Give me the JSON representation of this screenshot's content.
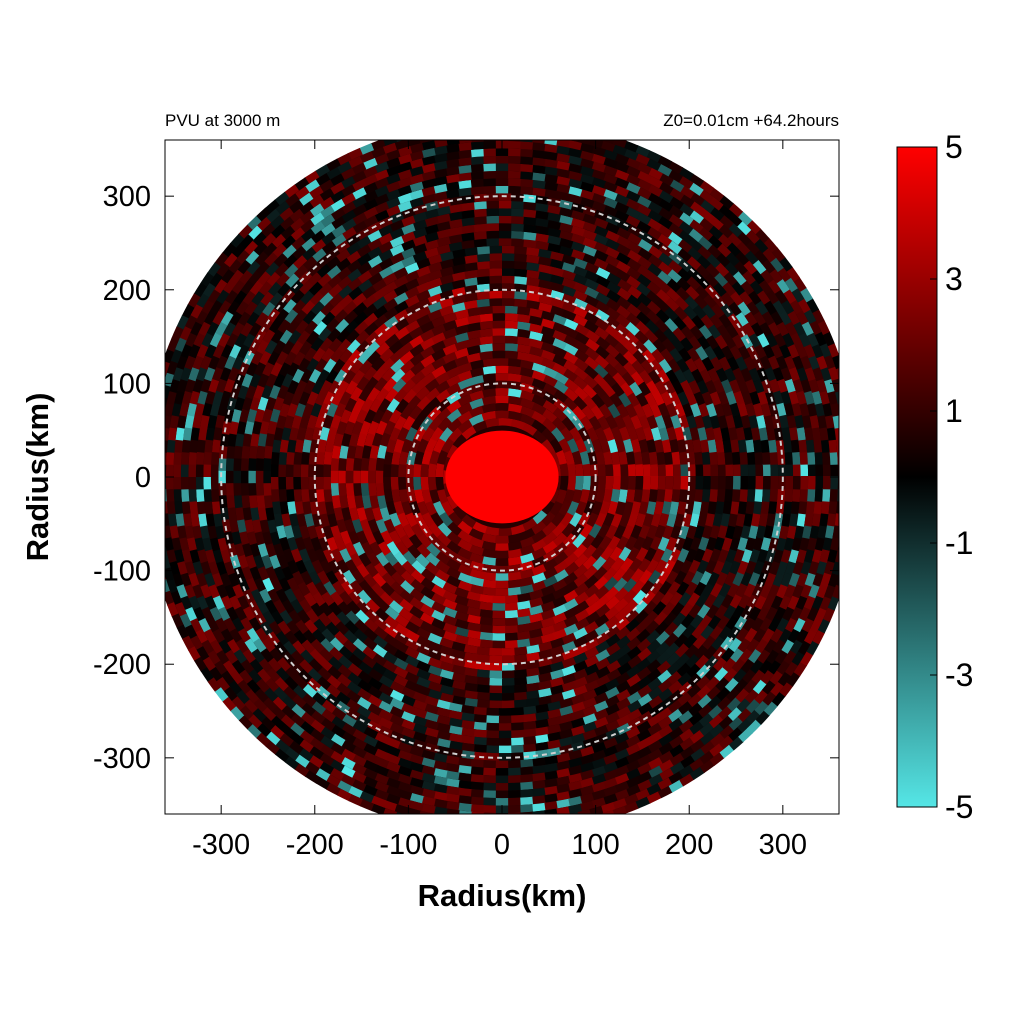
{
  "chart_data": {
    "type": "heatmap",
    "title_left": "PVU at  3000 m",
    "title_right": "Z0=0.01cm  +64.2hours",
    "xlabel": "Radius(km)",
    "ylabel": "Radius(km)",
    "xlim": [
      -360,
      360
    ],
    "ylim": [
      -360,
      360
    ],
    "x_ticks": [
      -300,
      -200,
      -100,
      0,
      100,
      200,
      300
    ],
    "y_ticks": [
      -300,
      -200,
      -100,
      0,
      100,
      200,
      300
    ],
    "x_tick_labels": [
      "-300",
      "-200",
      "-100",
      "0",
      "100",
      "200",
      "300"
    ],
    "y_tick_labels": [
      "-300",
      "-200",
      "-100",
      "0",
      "100",
      "200",
      "300"
    ],
    "domain_radius_km": 380,
    "reference_circles_km": [
      100,
      200,
      300
    ],
    "colorbar": {
      "min": -5,
      "max": 5,
      "tick_values": [
        5,
        3,
        1,
        -1,
        -3,
        -5
      ],
      "tick_labels": [
        "5",
        "3",
        "1",
        "-1",
        "-3",
        "-5"
      ],
      "colors": {
        "high": "#ff0000",
        "mid": "#000000",
        "low": "#55e6e6"
      }
    },
    "pattern": {
      "core_value": 5,
      "core_radius_km": 55,
      "inner_band_km": [
        55,
        200
      ],
      "inner_band_mean": 2.2,
      "outer_mean": 0.9,
      "negative_patch_fraction": 0.12
    }
  }
}
